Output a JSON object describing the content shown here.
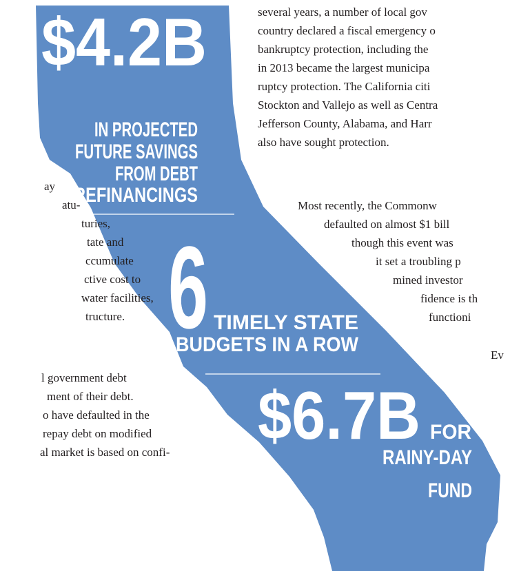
{
  "left_column": {
    "paragraph_1": [
      "ay",
      "atu-",
      "turies,",
      "tate and",
      "ccumulate",
      "ctive cost to",
      "water facilities,",
      "tructure."
    ],
    "paragraph_2": [
      "l government debt",
      "ment of their debt.",
      "o have defaulted in the",
      "repay debt on modified",
      "al market is based on confi-"
    ]
  },
  "right_column": {
    "paragraph_1": [
      "several years, a number of local gov",
      "country declared a fiscal emergency o",
      "bankruptcy protection, including the",
      "in 2013 became the largest municipa",
      "ruptcy protection. The California citi",
      "Stockton and Vallejo as well as Centra",
      "Jefferson County, Alabama, and Harr",
      "also have sought protection."
    ],
    "paragraph_2": [
      "Most recently, the Commonw",
      "defaulted on almost $1 bill",
      "though this event was",
      "it set a troubling p",
      "mined investor",
      "fidence is th",
      "functioni",
      "Ev"
    ]
  },
  "infographic": {
    "stat_1": {
      "figure": "$4.2B",
      "caption": [
        "IN PROJECTED",
        "FUTURE SAVINGS",
        "FROM DEBT",
        "REFINANCINGS"
      ]
    },
    "stat_2": {
      "figure": "6",
      "caption": [
        "TIMELY STATE",
        "BUDGETS IN A ROW"
      ]
    },
    "stat_3": {
      "figure": "$6.7B",
      "caption": [
        "FOR",
        "RAINY-DAY",
        "FUND"
      ]
    }
  }
}
